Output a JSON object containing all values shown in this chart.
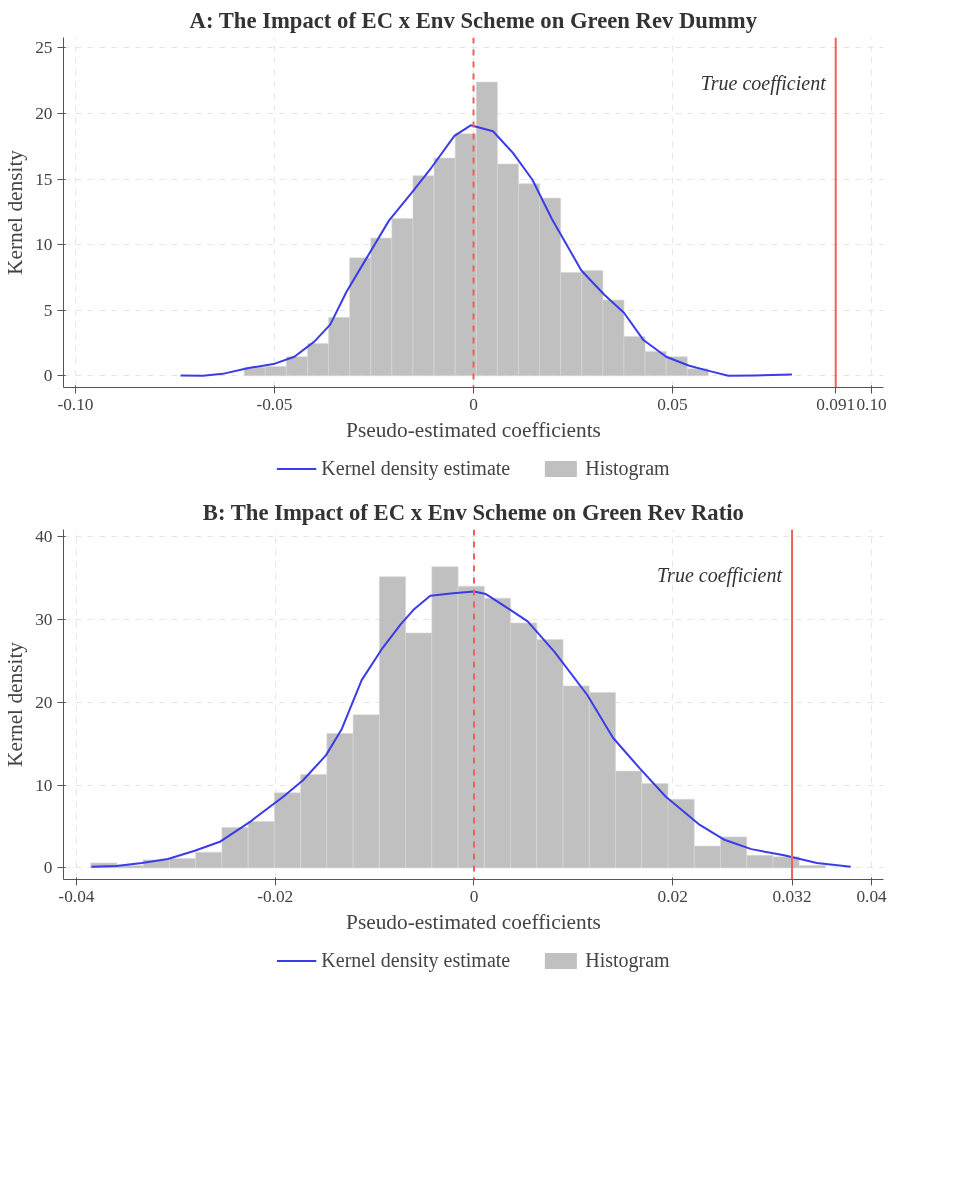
{
  "chart_data": [
    {
      "type": "histogram",
      "title": "A: The Impact of EC x Env Scheme on Green Rev Dummy",
      "xlabel": "Pseudo-estimated coefficients",
      "ylabel": "Kernel density",
      "bins": [
        -0.0576,
        -0.0523,
        -0.047,
        -0.0417,
        -0.0364,
        -0.0311,
        -0.0258,
        -0.0205,
        -0.0152,
        -0.0099,
        -0.0046,
        0.0007,
        0.006,
        0.0113,
        0.0166,
        0.0219,
        0.0272,
        0.0325,
        0.0378,
        0.0431,
        0.0484,
        0.0537,
        0.059
      ],
      "series": [
        {
          "name": "Kernel density estimate",
          "type": "line",
          "color": "#3b3be8",
          "x": [
            -0.0736,
            -0.068,
            -0.063,
            -0.0565,
            -0.0499,
            -0.045,
            -0.04,
            -0.036,
            -0.0319,
            -0.0269,
            -0.0212,
            -0.0154,
            -0.0105,
            -0.0048,
            -0.0007,
            0.0049,
            0.0099,
            0.0148,
            0.0197,
            0.0271,
            0.0328,
            0.0378,
            0.0427,
            0.0484,
            0.0542,
            0.0591,
            0.064,
            0.0706,
            0.08
          ],
          "values": [
            0.02,
            0,
            0.14,
            0.58,
            0.92,
            1.45,
            2.6,
            3.9,
            6.4,
            8.95,
            11.85,
            14.0,
            15.9,
            18.3,
            19.1,
            18.65,
            17.0,
            14.95,
            11.95,
            8.03,
            6.19,
            4.8,
            2.72,
            1.45,
            0.76,
            0.37,
            0,
            0.02,
            0.09
          ]
        },
        {
          "name": "Histogram",
          "type": "histogram",
          "color": "#c0c0c0",
          "values": [
            0.65,
            0.7,
            1.45,
            2.45,
            4.45,
            9.0,
            10.5,
            12.0,
            15.25,
            16.6,
            18.45,
            22.4,
            16.15,
            14.65,
            13.55,
            7.87,
            8.03,
            5.77,
            3.0,
            1.85,
            1.45,
            0.53
          ]
        }
      ],
      "xlim": [
        -0.103,
        0.103
      ],
      "ylim": [
        -0.9,
        25.8
      ],
      "xticks": [
        {
          "value": -0.1,
          "label": "-0.10"
        },
        -0.05,
        0,
        0.05,
        0.091,
        {
          "value": 0.1,
          "label": "0.10"
        }
      ],
      "yticks": [
        0,
        5,
        10,
        15,
        20,
        25
      ],
      "ref_lines": [
        {
          "axis": "x",
          "value": 0,
          "label": null,
          "color": "#f0605a",
          "line_style": "dashed"
        },
        {
          "axis": "x",
          "value": 0.091,
          "label": "True coefficient",
          "color": "#f0605a",
          "line_style": "solid"
        }
      ],
      "grid": true,
      "legend": "bottom"
    },
    {
      "type": "histogram",
      "title": "B: The Impact of EC x Env Scheme on Green Rev Ratio",
      "xlabel": "Pseudo-estimated coefficients",
      "ylabel": "Kernel density",
      "bins": [
        -0.03856,
        -0.03592,
        -0.03328,
        -0.03064,
        -0.028,
        -0.02536,
        -0.02272,
        -0.02008,
        -0.01744,
        -0.0148,
        -0.01216,
        -0.00952,
        -0.00688,
        -0.00424,
        -0.0016,
        0.00104,
        0.00368,
        0.00632,
        0.00896,
        0.0116,
        0.01424,
        0.01688,
        0.01952,
        0.02216,
        0.0248,
        0.02744,
        0.03008,
        0.03272,
        0.03536
      ],
      "series": [
        {
          "name": "Kernel density estimate",
          "type": "line",
          "color": "#3b3be8",
          "x": [
            -0.0385,
            -0.036,
            -0.0334,
            -0.0308,
            -0.0281,
            -0.0255,
            -0.0225,
            -0.0192,
            -0.0172,
            -0.0149,
            -0.0133,
            -0.0113,
            -0.0093,
            -0.0074,
            -0.006,
            -0.0044,
            -0.0021,
            0,
            0.0012,
            0.0035,
            0.0054,
            0.0081,
            0.0114,
            0.014,
            0.0167,
            0.0193,
            0.0226,
            0.0252,
            0.0279,
            0.0312,
            0.0345,
            0.0379
          ],
          "values": [
            0.15,
            0.22,
            0.6,
            1.08,
            2.08,
            3.2,
            5.6,
            8.6,
            10.6,
            13.6,
            16.8,
            22.7,
            26.4,
            29.4,
            31.3,
            32.9,
            33.2,
            33.4,
            33.1,
            31.3,
            29.8,
            26.1,
            20.9,
            15.7,
            12.0,
            8.6,
            5.3,
            3.4,
            2.27,
            1.52,
            0.6,
            0.15
          ]
        },
        {
          "name": "Histogram",
          "type": "histogram",
          "color": "#c0c0c0",
          "values": [
            0.6,
            0.3,
            0.97,
            1.15,
            1.9,
            4.87,
            5.6,
            9.07,
            11.3,
            16.25,
            18.5,
            35.2,
            28.4,
            36.4,
            34.05,
            32.6,
            29.6,
            27.6,
            22.0,
            21.2,
            11.7,
            10.2,
            8.3,
            2.64,
            3.75,
            1.52,
            1.34,
            0.3
          ]
        }
      ],
      "xlim": [
        -0.0413,
        0.0412
      ],
      "ylim": [
        -1.4,
        40.9
      ],
      "xticks": [
        -0.04,
        -0.02,
        0,
        0.02,
        0.032,
        0.04
      ],
      "yticks": [
        0,
        10,
        20,
        30,
        40
      ],
      "ref_lines": [
        {
          "axis": "x",
          "value": 0,
          "label": null,
          "color": "#f0605a",
          "line_style": "dashed"
        },
        {
          "axis": "x",
          "value": 0.032,
          "label": "True coefficient",
          "color": "#f0605a",
          "line_style": "solid"
        }
      ],
      "grid": true,
      "legend": "bottom"
    }
  ]
}
